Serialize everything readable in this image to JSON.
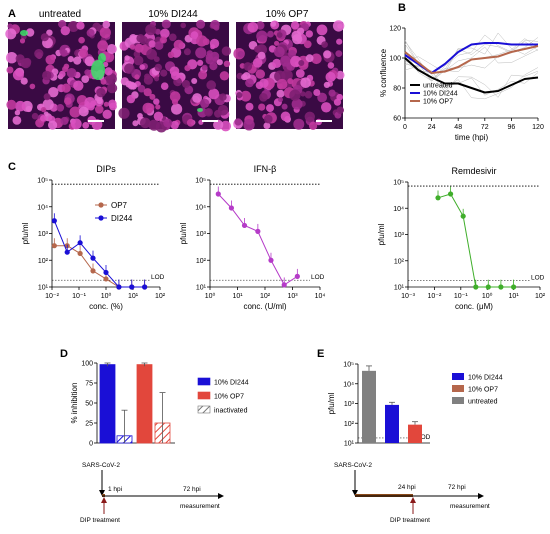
{
  "panels": {
    "A": {
      "letter": "A",
      "images": [
        {
          "label": "untreated"
        },
        {
          "label": "10% DI244"
        },
        {
          "label": "10% OP7"
        }
      ]
    },
    "B": {
      "letter": "B"
    },
    "C": {
      "letter": "C"
    },
    "D": {
      "letter": "D",
      "timeline": {
        "virus": "SARS-CoV-2",
        "t1": "1 hpi",
        "t2": "72 hpi",
        "treat": "DIP treatment",
        "measure": "measurement"
      }
    },
    "E": {
      "letter": "E",
      "timeline": {
        "virus": "SARS-CoV-2",
        "t1": "24 hpi",
        "t2": "72 hpi",
        "treat": "DIP treatment",
        "measure": "measurement"
      }
    }
  },
  "colors": {
    "di244": "#1a0fd6",
    "op7": "#b5674c",
    "untreated": "#000000",
    "remdesivir": "#3fae2a",
    "ifn": "#b53bc8",
    "barOp7": "#e2473c",
    "barGray": "#808080",
    "band": "#e9a7d8"
  },
  "chart_data": [
    {
      "id": "B",
      "type": "line",
      "xlabel": "time (hpi)",
      "ylabel": "% confluence",
      "xlim": [
        0,
        120
      ],
      "ylim": [
        60,
        120
      ],
      "xticks": [
        0,
        24,
        48,
        72,
        96,
        120
      ],
      "yticks": [
        60,
        80,
        100,
        120
      ],
      "legend_position": "bottom-left",
      "series": [
        {
          "name": "untreated",
          "x": [
            0,
            12,
            24,
            36,
            48,
            60,
            72,
            84,
            96,
            108,
            120
          ],
          "values": [
            100,
            92,
            87,
            83,
            83,
            80,
            77,
            78,
            82,
            86,
            87
          ]
        },
        {
          "name": "10% DI244",
          "x": [
            0,
            12,
            24,
            36,
            48,
            60,
            72,
            84,
            96,
            108,
            120
          ],
          "values": [
            102,
            96,
            90,
            96,
            104,
            109,
            110,
            110,
            109,
            109,
            109
          ]
        },
        {
          "name": "10% OP7",
          "x": [
            0,
            12,
            24,
            36,
            48,
            60,
            72,
            84,
            96,
            108,
            120
          ],
          "values": [
            104,
            97,
            90,
            91,
            94,
            99,
            100,
            101,
            104,
            106,
            108
          ]
        }
      ]
    },
    {
      "id": "C1",
      "type": "line",
      "title": "DIPs",
      "xlabel": "conc. (%)",
      "ylabel": "pfu/ml",
      "xscale": "log",
      "yscale": "log",
      "xlim": [
        0.01,
        100
      ],
      "ylim": [
        10,
        100000
      ],
      "xticks": [
        "10⁻²",
        "10⁻¹",
        "10⁰",
        "10¹",
        "10²"
      ],
      "yticks": [
        "10¹",
        "10²",
        "10³",
        "10⁴",
        "10⁵"
      ],
      "lod_label": "LOD",
      "lod": 18,
      "upper_dotted": 70000,
      "series": [
        {
          "name": "OP7",
          "x": [
            0.0122,
            0.0366,
            0.11,
            0.33,
            1,
            3,
            9,
            27
          ],
          "values": [
            350,
            350,
            180,
            40,
            20,
            10,
            10,
            10
          ]
        },
        {
          "name": "DI244",
          "x": [
            0.0122,
            0.0366,
            0.11,
            0.33,
            1,
            3,
            9,
            27
          ],
          "values": [
            3000,
            200,
            450,
            120,
            35,
            10,
            10,
            10
          ]
        }
      ]
    },
    {
      "id": "C2",
      "type": "line",
      "title": "IFN-β",
      "xlabel": "conc. (U/ml)",
      "ylabel": "pfu/ml",
      "xscale": "log",
      "yscale": "log",
      "xlim": [
        1,
        10000
      ],
      "ylim": [
        10,
        100000
      ],
      "xticks": [
        "10⁰",
        "10¹",
        "10²",
        "10³",
        "10⁴"
      ],
      "yticks": [
        "10¹",
        "10²",
        "10³",
        "10⁴",
        "10⁵"
      ],
      "lod_label": "LOD",
      "lod": 18,
      "upper_dotted": 70000,
      "series": [
        {
          "name": "IFN-β",
          "x": [
            2,
            6,
            18,
            55,
            165,
            500,
            1500
          ],
          "values": [
            30000,
            9000,
            2000,
            1200,
            100,
            12,
            25
          ]
        }
      ]
    },
    {
      "id": "C3",
      "type": "line",
      "title": "Remdesivir",
      "xlabel": "conc. (μM)",
      "ylabel": "pfu/ml",
      "xscale": "log",
      "yscale": "log",
      "xlim": [
        0.001,
        100
      ],
      "ylim": [
        10,
        100000
      ],
      "xticks": [
        "10⁻³",
        "10⁻²",
        "10⁻¹",
        "10⁰",
        "10¹",
        "10²"
      ],
      "yticks": [
        "10¹",
        "10²",
        "10³",
        "10⁴",
        "10⁵"
      ],
      "lod_label": "LOD",
      "lod": 18,
      "upper_dotted": 70000,
      "series": [
        {
          "name": "Remdesivir",
          "x": [
            0.0137,
            0.041,
            0.123,
            0.37,
            1.1,
            3.3,
            10
          ],
          "values": [
            25000,
            35000,
            5000,
            10,
            10,
            10,
            10
          ]
        }
      ]
    },
    {
      "id": "D",
      "type": "bar",
      "ylabel": "% inhibition",
      "ylim": [
        0,
        100
      ],
      "yticks": [
        0,
        25,
        50,
        75,
        100
      ],
      "legend_position": "right",
      "legend": [
        "10% DI244",
        "10% OP7",
        "inactivated"
      ],
      "bars": [
        {
          "group": "10% DI244",
          "value": 98,
          "error": 2,
          "hatched": false
        },
        {
          "group": "10% DI244",
          "value": 9,
          "error": 32,
          "hatched": true
        },
        {
          "group": "10% OP7",
          "value": 98,
          "error": 2,
          "hatched": false
        },
        {
          "group": "10% OP7",
          "value": 25,
          "error": 38,
          "hatched": true
        }
      ]
    },
    {
      "id": "E",
      "type": "bar",
      "ylabel": "pfu/ml",
      "yscale": "log",
      "ylim": [
        10,
        100000
      ],
      "yticks": [
        "10¹",
        "10²",
        "10³",
        "10⁴",
        "10⁵"
      ],
      "lod_label": "LOD",
      "lod": 18,
      "legend_position": "right",
      "legend": [
        "10% DI244",
        "10% OP7",
        "untreated"
      ],
      "bars": [
        {
          "group": "untreated",
          "value": 45000,
          "error_up": 80000
        },
        {
          "group": "10% DI244",
          "value": 850,
          "error_up": 1150
        },
        {
          "group": "10% OP7",
          "value": 85,
          "error_up": 120
        }
      ]
    }
  ]
}
